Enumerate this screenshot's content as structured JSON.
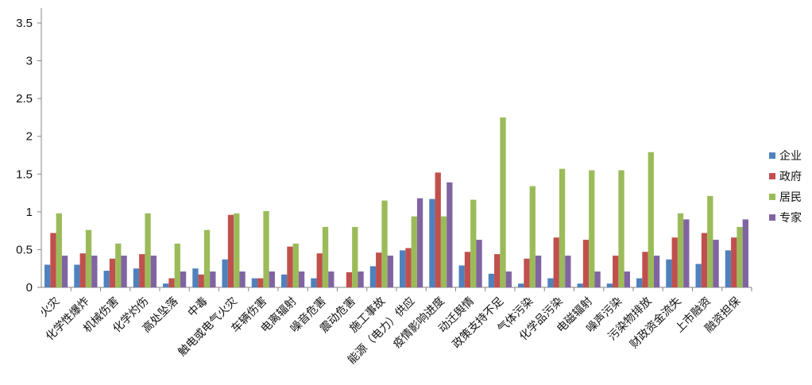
{
  "chart_data": {
    "type": "bar",
    "title": "",
    "xlabel": "",
    "ylabel": "",
    "ylim": [
      0,
      3.5
    ],
    "yticks": [
      "0",
      "0.5",
      "1",
      "1.5",
      "2",
      "2.5",
      "3",
      "3.5"
    ],
    "grid": false,
    "legend_position": "right",
    "categories": [
      "火灾",
      "化学性爆炸",
      "机械伤害",
      "化学灼伤",
      "高处坠落",
      "中毒",
      "触电或电气火灾",
      "车辆伤害",
      "电离辐射",
      "噪音危害",
      "震动危害",
      "施工事故",
      "能源（电力）供应",
      "疫情影响进度",
      "动迁舆情",
      "政策支持不足",
      "气体污染",
      "化学品污染",
      "电磁辐射",
      "噪声污染",
      "污染物排放",
      "财政资金流失",
      "上市融资",
      "融资担保"
    ],
    "series": [
      {
        "name": "企业",
        "color": "#4f81bd",
        "values": [
          0.3,
          0.3,
          0.22,
          0.25,
          0.05,
          0.25,
          0.37,
          0.12,
          0.17,
          0.12,
          0.0,
          0.28,
          0.49,
          1.17,
          0.29,
          0.18,
          0.05,
          0.12,
          0.05,
          0.05,
          0.12,
          0.37,
          0.31,
          0.49
        ]
      },
      {
        "name": "政府",
        "color": "#c0504d",
        "values": [
          0.72,
          0.45,
          0.38,
          0.44,
          0.12,
          0.17,
          0.96,
          0.12,
          0.54,
          0.45,
          0.2,
          0.46,
          0.52,
          1.52,
          0.47,
          0.44,
          0.38,
          0.66,
          0.63,
          0.42,
          0.47,
          0.66,
          0.72,
          0.66
        ]
      },
      {
        "name": "居民",
        "color": "#9bbb59",
        "values": [
          0.98,
          0.76,
          0.58,
          0.98,
          0.58,
          0.76,
          0.98,
          1.01,
          0.58,
          0.8,
          0.8,
          1.15,
          0.94,
          0.94,
          1.16,
          2.25,
          1.34,
          1.57,
          1.55,
          1.55,
          1.79,
          0.98,
          1.21,
          0.8
        ]
      },
      {
        "name": "专家",
        "color": "#8064a2",
        "values": [
          0.42,
          0.42,
          0.42,
          0.42,
          0.21,
          0.21,
          0.21,
          0.21,
          0.21,
          0.21,
          0.21,
          0.42,
          1.18,
          1.39,
          0.63,
          0.21,
          0.42,
          0.42,
          0.21,
          0.21,
          0.42,
          0.9,
          0.63,
          0.9
        ]
      }
    ]
  }
}
